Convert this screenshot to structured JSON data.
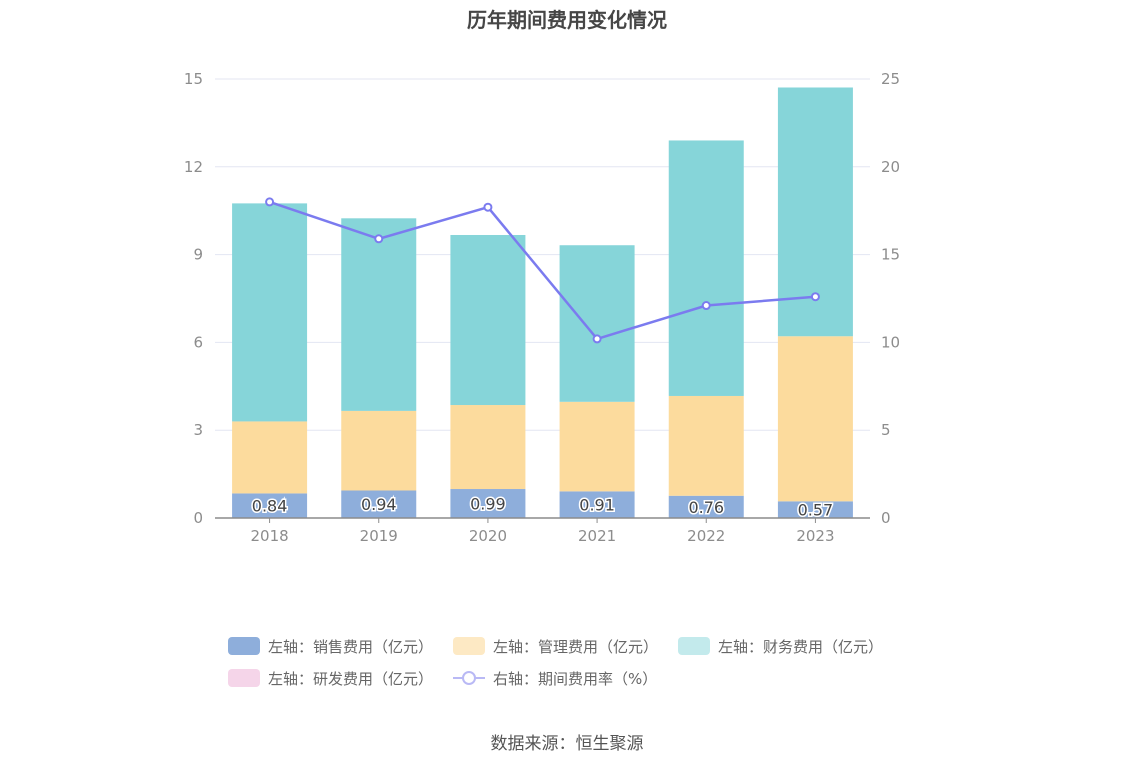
{
  "title": "历年期间费用变化情况",
  "source": "数据来源：恒生聚源",
  "chart_data": {
    "type": "bar",
    "stacked": true,
    "categories": [
      "2018",
      "2019",
      "2020",
      "2021",
      "2022",
      "2023"
    ],
    "left_axis": {
      "ylim": [
        0,
        15
      ],
      "ticks": [
        "0",
        "3",
        "6",
        "9",
        "12",
        "15"
      ]
    },
    "right_axis": {
      "ylim": [
        0,
        25
      ],
      "ticks": [
        "0",
        "5",
        "10",
        "15",
        "20",
        "25"
      ]
    },
    "grid": true,
    "legend_position": "bottom",
    "series": [
      {
        "name": "左轴：销售费用（亿元）",
        "axis": "left",
        "type": "bar",
        "color": "#8eaedb",
        "values": [
          0.84,
          0.94,
          0.99,
          0.91,
          0.76,
          0.57
        ],
        "labels": [
          "0.84",
          "0.94",
          "0.99",
          "0.91",
          "0.76",
          "0.57"
        ]
      },
      {
        "name": "左轴：管理费用（亿元）",
        "axis": "left",
        "type": "bar",
        "color": "#fcdb9d",
        "legend_color": "#fde9c4",
        "values": [
          2.46,
          2.72,
          2.87,
          3.06,
          3.41,
          5.64
        ]
      },
      {
        "name": "左轴：财务费用（亿元）",
        "axis": "left",
        "type": "bar",
        "color": "#86d5d9",
        "legend_color": "#c3eaec",
        "values": [
          7.45,
          6.58,
          5.81,
          5.35,
          8.73,
          8.5
        ]
      },
      {
        "name": "左轴：研发费用（亿元）",
        "axis": "left",
        "type": "bar",
        "color": "#f5d5e9",
        "values": [
          0,
          0,
          0,
          0,
          0,
          0
        ]
      },
      {
        "name": "右轴：期间费用率（%）",
        "axis": "right",
        "type": "line",
        "color": "#7b7bef",
        "legend_color": "#b9b9f5",
        "values": [
          18.0,
          15.9,
          17.7,
          10.2,
          12.1,
          12.6
        ]
      }
    ]
  }
}
